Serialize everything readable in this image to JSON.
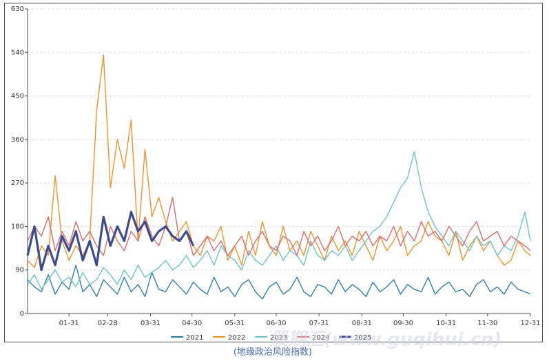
{
  "caption": "(地缘政治风险指数)",
  "watermark": "股期汇(www.guqihui.cn)",
  "chart_data": {
    "type": "line",
    "title": "",
    "xlabel": "",
    "ylabel": "",
    "ylim": [
      0,
      630
    ],
    "yticks": [
      0,
      90,
      180,
      270,
      360,
      450,
      540,
      630
    ],
    "xticks": [
      "01-31",
      "02-28",
      "03-31",
      "04-30",
      "05-31",
      "06-30",
      "07-31",
      "08-31",
      "09-30",
      "10-31",
      "11-30",
      "12-31"
    ],
    "grid": "horizontal dashed",
    "legend_position": "bottom",
    "x_note": "x values are day-of-year (1-365), sampled every 5 days",
    "series": [
      {
        "name": "2021",
        "color": "#2f7fa8",
        "x": [
          1,
          6,
          11,
          16,
          21,
          26,
          31,
          36,
          41,
          46,
          51,
          56,
          61,
          66,
          71,
          76,
          81,
          86,
          91,
          96,
          101,
          106,
          111,
          116,
          121,
          126,
          131,
          136,
          141,
          146,
          151,
          156,
          161,
          166,
          171,
          176,
          181,
          186,
          191,
          196,
          201,
          206,
          211,
          216,
          221,
          226,
          231,
          236,
          241,
          246,
          251,
          256,
          261,
          266,
          271,
          276,
          281,
          286,
          291,
          296,
          301,
          306,
          311,
          316,
          321,
          326,
          331,
          336,
          341,
          346,
          351,
          356,
          361,
          365
        ],
        "values": [
          70,
          55,
          45,
          80,
          40,
          65,
          50,
          100,
          45,
          60,
          35,
          70,
          55,
          40,
          75,
          45,
          60,
          35,
          85,
          50,
          45,
          70,
          55,
          40,
          65,
          50,
          40,
          75,
          45,
          55,
          35,
          60,
          70,
          45,
          30,
          55,
          65,
          40,
          50,
          75,
          45,
          35,
          60,
          55,
          40,
          70,
          45,
          60,
          50,
          35,
          65,
          45,
          55,
          70,
          40,
          60,
          50,
          45,
          75,
          40,
          55,
          65,
          45,
          50,
          35,
          60,
          70,
          45,
          55,
          40,
          65,
          50,
          45,
          40
        ]
      },
      {
        "name": "2022",
        "color": "#f0922b",
        "x": [
          1,
          6,
          11,
          16,
          21,
          26,
          31,
          36,
          41,
          46,
          51,
          56,
          61,
          66,
          71,
          76,
          81,
          86,
          91,
          96,
          101,
          106,
          111,
          116,
          121,
          126,
          131,
          136,
          141,
          146,
          151,
          156,
          161,
          166,
          171,
          176,
          181,
          186,
          191,
          196,
          201,
          206,
          211,
          216,
          221,
          226,
          231,
          236,
          241,
          246,
          251,
          256,
          261,
          266,
          271,
          276,
          281,
          286,
          291,
          296,
          301,
          306,
          311,
          316,
          321,
          326,
          331,
          336,
          341,
          346,
          351,
          356,
          361,
          365
        ],
        "values": [
          110,
          95,
          140,
          120,
          285,
          150,
          110,
          140,
          120,
          150,
          420,
          535,
          260,
          360,
          300,
          400,
          150,
          340,
          200,
          240,
          190,
          150,
          170,
          190,
          140,
          120,
          160,
          150,
          180,
          110,
          140,
          100,
          170,
          120,
          190,
          140,
          120,
          180,
          130,
          150,
          120,
          170,
          140,
          110,
          160,
          130,
          150,
          120,
          170,
          140,
          110,
          160,
          130,
          150,
          180,
          120,
          140,
          150,
          190,
          160,
          150,
          120,
          170,
          110,
          140,
          160,
          130,
          150,
          120,
          100,
          110,
          150,
          130,
          120
        ]
      },
      {
        "name": "2023",
        "color": "#6cc4c8",
        "x": [
          1,
          6,
          11,
          16,
          21,
          26,
          31,
          36,
          41,
          46,
          51,
          56,
          61,
          66,
          71,
          76,
          81,
          86,
          91,
          96,
          101,
          106,
          111,
          116,
          121,
          126,
          131,
          136,
          141,
          146,
          151,
          156,
          161,
          166,
          171,
          176,
          181,
          186,
          191,
          196,
          201,
          206,
          211,
          216,
          221,
          226,
          231,
          236,
          241,
          246,
          251,
          256,
          261,
          266,
          271,
          276,
          281,
          286,
          291,
          296,
          301,
          306,
          311,
          316,
          321,
          326,
          331,
          336,
          341,
          346,
          351,
          356,
          361,
          365
        ],
        "values": [
          60,
          80,
          50,
          70,
          90,
          65,
          75,
          55,
          85,
          60,
          70,
          95,
          80,
          60,
          90,
          70,
          100,
          75,
          85,
          95,
          110,
          90,
          100,
          120,
          95,
          110,
          130,
          100,
          140,
          120,
          110,
          90,
          130,
          110,
          100,
          120,
          140,
          110,
          130,
          120,
          100,
          150,
          120,
          110,
          130,
          120,
          140,
          110,
          130,
          150,
          170,
          180,
          200,
          230,
          260,
          280,
          335,
          260,
          210,
          180,
          160,
          140,
          170,
          150,
          130,
          160,
          140,
          150,
          120,
          140,
          130,
          160,
          210,
          150
        ]
      },
      {
        "name": "2024",
        "color": "#de6a6a",
        "x": [
          1,
          6,
          11,
          16,
          21,
          26,
          31,
          36,
          41,
          46,
          51,
          56,
          61,
          66,
          71,
          76,
          81,
          86,
          91,
          96,
          101,
          106,
          111,
          116,
          121,
          126,
          131,
          136,
          141,
          146,
          151,
          156,
          161,
          166,
          171,
          176,
          181,
          186,
          191,
          196,
          201,
          206,
          211,
          216,
          221,
          226,
          231,
          236,
          241,
          246,
          251,
          256,
          261,
          266,
          271,
          276,
          281,
          286,
          291,
          296,
          301,
          306,
          311,
          316,
          321,
          326,
          331,
          336,
          341,
          346,
          351,
          356,
          361,
          365
        ],
        "values": [
          150,
          180,
          160,
          200,
          130,
          170,
          140,
          190,
          150,
          170,
          140,
          120,
          180,
          150,
          130,
          170,
          150,
          200,
          160,
          140,
          180,
          240,
          150,
          170,
          120,
          140,
          160,
          130,
          150,
          120,
          140,
          160,
          120,
          150,
          170,
          140,
          130,
          160,
          150,
          120,
          170,
          140,
          160,
          130,
          150,
          180,
          140,
          160,
          150,
          170,
          140,
          160,
          150,
          180,
          140,
          170,
          150,
          190,
          160,
          170,
          150,
          180,
          160,
          140,
          170,
          190,
          150,
          160,
          170,
          140,
          160,
          150,
          140,
          130
        ]
      },
      {
        "name": "2025",
        "color": "#3c4a8f",
        "x": [
          1,
          6,
          11,
          16,
          21,
          26,
          31,
          36,
          41,
          46,
          51,
          56,
          61,
          66,
          71,
          76,
          81,
          86,
          91,
          96,
          101,
          106,
          111,
          116,
          121
        ],
        "values": [
          120,
          180,
          90,
          140,
          100,
          160,
          130,
          170,
          110,
          150,
          100,
          200,
          140,
          180,
          150,
          210,
          170,
          190,
          150,
          170,
          180,
          160,
          150,
          170,
          140
        ]
      }
    ]
  }
}
